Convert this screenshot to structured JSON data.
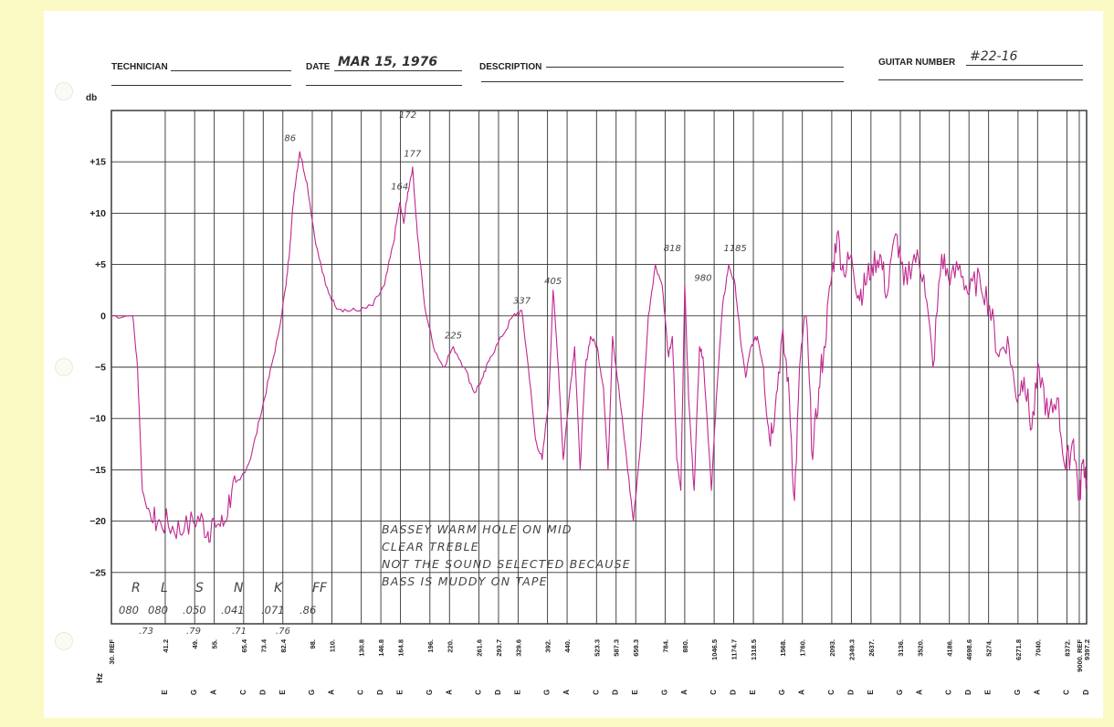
{
  "header": {
    "technician_label": "TECHNICIAN",
    "date_label": "DATE",
    "date_value": "MAR 15, 1976",
    "description_label": "DESCRIPTION",
    "guitar_number_label": "GUITAR NUMBER",
    "guitar_number_value": "#22-16"
  },
  "chart_data": {
    "type": "line",
    "ylabel": "db",
    "xlabel": "Hz",
    "ylim": [
      -30,
      20
    ],
    "yticks": [
      15,
      10,
      5,
      0,
      -5,
      -10,
      -15,
      -20,
      -25
    ],
    "ytick_labels": [
      "+15",
      "+10",
      "+5",
      "0",
      "−5",
      "−10",
      "−15",
      "−20",
      "−25"
    ],
    "x_freq_labels": [
      "30. REF",
      "41.2",
      "49.",
      "55.",
      "65.4",
      "73.4",
      "82.4",
      "98.",
      "110.",
      "130.8",
      "146.8",
      "164.8",
      "196.",
      "220.",
      "261.6",
      "293.7",
      "329.6",
      "392.",
      "440.",
      "523.3",
      "587.3",
      "659.3",
      "784.",
      "880.",
      "1046.5",
      "1174.7",
      "1318.5",
      "1568.",
      "1760.",
      "2093.",
      "2349.3",
      "2637.",
      "3136.",
      "3520.",
      "4186.",
      "4698.6",
      "5274.",
      "6271.8",
      "7040.",
      "8372.",
      "9000. REF",
      "9397.2"
    ],
    "x_note_labels": [
      "",
      "E",
      "G",
      "A",
      "C",
      "D",
      "E",
      "G",
      "A",
      "C",
      "D",
      "E",
      "G",
      "A",
      "C",
      "D",
      "E",
      "G",
      "A",
      "C",
      "D",
      "E",
      "G",
      "A",
      "C",
      "D",
      "E",
      "G",
      "A",
      "C",
      "D",
      "E",
      "G",
      "A",
      "C",
      "D",
      "E",
      "G",
      "A",
      "C",
      "",
      "D"
    ],
    "grid": true,
    "series": [
      {
        "color": "#c0288f",
        "x": [
          30,
          34,
          35,
          36,
          38,
          40,
          43,
          46,
          50,
          53,
          55,
          58,
          61,
          64,
          68,
          72,
          76,
          80,
          84,
          86,
          88,
          91,
          95,
          100,
          106,
          112,
          120,
          130,
          140,
          150,
          158,
          164,
          168,
          172,
          177,
          182,
          190,
          200,
          212,
          225,
          240,
          255,
          268,
          280,
          300,
          320,
          337,
          350,
          365,
          380,
          395,
          405,
          418,
          430,
          445,
          460,
          475,
          490,
          505,
          525,
          545,
          560,
          575,
          600,
          625,
          650,
          680,
          710,
          740,
          770,
          800,
          818,
          840,
          860,
          880,
          900,
          930,
          960,
          980,
          1000,
          1030,
          1060,
          1100,
          1140,
          1185,
          1220,
          1260,
          1300,
          1350,
          1400,
          1450,
          1500,
          1560,
          1620,
          1680,
          1740,
          1800,
          1870,
          1940,
          2000,
          2080,
          2160,
          2250,
          2350,
          2450,
          2550,
          2650,
          2780,
          2900,
          3050,
          3200,
          3400,
          3600,
          3800,
          4000,
          4200,
          4450,
          4700,
          5000,
          5300,
          5600,
          5900,
          6200,
          6500,
          6800,
          7100,
          7500,
          7900,
          8300,
          8700,
          9000,
          9200,
          9397
        ],
        "y": [
          0,
          0,
          -5,
          -17,
          -20,
          -20,
          -20.5,
          -21,
          -19.5,
          -21,
          -20,
          -20.5,
          -17,
          -16,
          -14,
          -10,
          -6,
          -2,
          3,
          7,
          12,
          16,
          13,
          7,
          3,
          1,
          0.5,
          0.5,
          1,
          3,
          7,
          11,
          9,
          12,
          14.5,
          8,
          1,
          -3,
          -5,
          -3,
          -5,
          -7.5,
          -6,
          -4,
          -2,
          0,
          0.5,
          -5,
          -12,
          -14,
          -8,
          2.5,
          -5,
          -14,
          -8,
          -3,
          -15,
          -5,
          -2,
          -3,
          -7,
          -15,
          -2,
          -8,
          -14,
          -20,
          -12,
          0,
          5,
          3,
          -4,
          -2,
          -14,
          -17,
          3,
          -8,
          -17,
          -3,
          -4,
          -9,
          -17,
          -8,
          1,
          5,
          3,
          -2,
          -6,
          -3,
          -2,
          -5,
          -12,
          -9,
          -2,
          -6,
          -18,
          -4,
          0,
          -14,
          -7,
          -3,
          3,
          8,
          4,
          6,
          2,
          3,
          5,
          6,
          2,
          8,
          3,
          6,
          4,
          -5,
          6,
          3,
          5,
          2,
          4,
          1,
          -4,
          -2,
          -8,
          -6,
          -11,
          -5,
          -10,
          -8,
          -15,
          -12,
          -18,
          -14,
          -16
        ]
      }
    ],
    "peak_annotations": [
      {
        "text": "86",
        "x": 86,
        "y": 17
      },
      {
        "text": "172",
        "x": 172,
        "y": 19.3
      },
      {
        "text": "177",
        "x": 177,
        "y": 15.5
      },
      {
        "text": "164",
        "x": 164,
        "y": 12.3
      },
      {
        "text": "225",
        "x": 225,
        "y": -2.2
      },
      {
        "text": "337",
        "x": 337,
        "y": 1.2
      },
      {
        "text": "405",
        "x": 405,
        "y": 3.1
      },
      {
        "text": "818",
        "x": 818,
        "y": 6.3
      },
      {
        "text": "980",
        "x": 980,
        "y": 3.4
      },
      {
        "text": "1185",
        "x": 1185,
        "y": 6.3
      }
    ],
    "handwritten_notes": [
      "BASSEY   WARM   HOLE ON MID",
      "CLEAR  TREBLE",
      "NOT THE SOUND SELECTED   BECAUSE",
      "BASS  IS  MUDDY  ON TAPE"
    ],
    "string_table": {
      "headers": [
        "R",
        "L",
        "S",
        "N",
        "K",
        "FF"
      ],
      "values": [
        "080",
        "080",
        ".050",
        ".041",
        ".071",
        ".86"
      ]
    },
    "bottom_small_values": [
      ".73",
      ".79",
      ".71",
      ".76"
    ]
  }
}
